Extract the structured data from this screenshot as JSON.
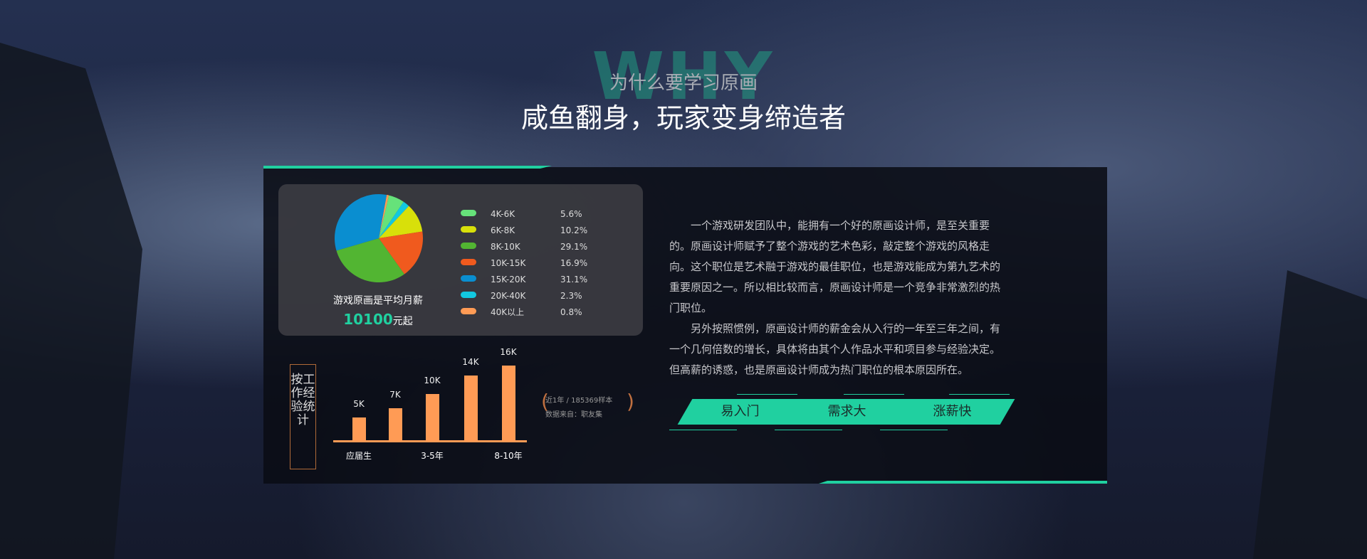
{
  "header": {
    "watermark": "WHY",
    "subtitle": "为什么要学习原画",
    "title": "咸鱼翻身，玩家变身缔造者"
  },
  "salary_card": {
    "caption": "游戏原画是平均月薪",
    "avg_value": "10100",
    "avg_suffix": "元起"
  },
  "chart_data": [
    {
      "type": "pie",
      "series": [
        {
          "name": "4K-6K",
          "value": 5.6,
          "label": "5.6%",
          "color": "#66e27a"
        },
        {
          "name": "6K-8K",
          "value": 10.2,
          "label": "10.2%",
          "color": "#d8e00a"
        },
        {
          "name": "8K-10K",
          "value": 29.1,
          "label": "29.1%",
          "color": "#52b532"
        },
        {
          "name": "10K-15K",
          "value": 16.9,
          "label": "16.9%",
          "color": "#f05a1e"
        },
        {
          "name": "15K-20K",
          "value": 31.1,
          "label": "31.1%",
          "color": "#0a8ed0"
        },
        {
          "name": "20K-40K",
          "value": 2.3,
          "label": "2.3%",
          "color": "#12c8e0"
        },
        {
          "name": "40K以上",
          "value": 0.8,
          "label": "0.8%",
          "color": "#ff9b55"
        }
      ]
    },
    {
      "type": "bar",
      "title": "按工作经验统计",
      "categories": [
        "应届生",
        "",
        "3-5年",
        "",
        "8-10年"
      ],
      "values": [
        5,
        7,
        10,
        14,
        16
      ],
      "labels": [
        "5K",
        "7K",
        "10K",
        "14K",
        "16K"
      ],
      "color": "#ff9b55"
    }
  ],
  "source_note": {
    "line1": "近1年 / 185369样本",
    "line2": "数据来自：职友集"
  },
  "description": {
    "p1": "一个游戏研发团队中，能拥有一个好的原画设计师，是至关重要的。原画设计师赋予了整个游戏的艺术色彩，敲定整个游戏的风格走向。这个职位是艺术融于游戏的最佳职位，也是游戏能成为第九艺术的重要原因之一。所以相比较而言，原画设计师是一个竞争非常激烈的热门职位。",
    "p2": "另外按照惯例，原画设计师的薪金会从入行的一年至三年之间，有一个几何倍数的增长，具体将由其个人作品水平和项目参与经验决定。但高薪的诱惑，也是原画设计师成为热门职位的根本原因所在。"
  },
  "tags": [
    "易入门",
    "需求大",
    "涨薪快"
  ],
  "accent": "#20d0a0"
}
